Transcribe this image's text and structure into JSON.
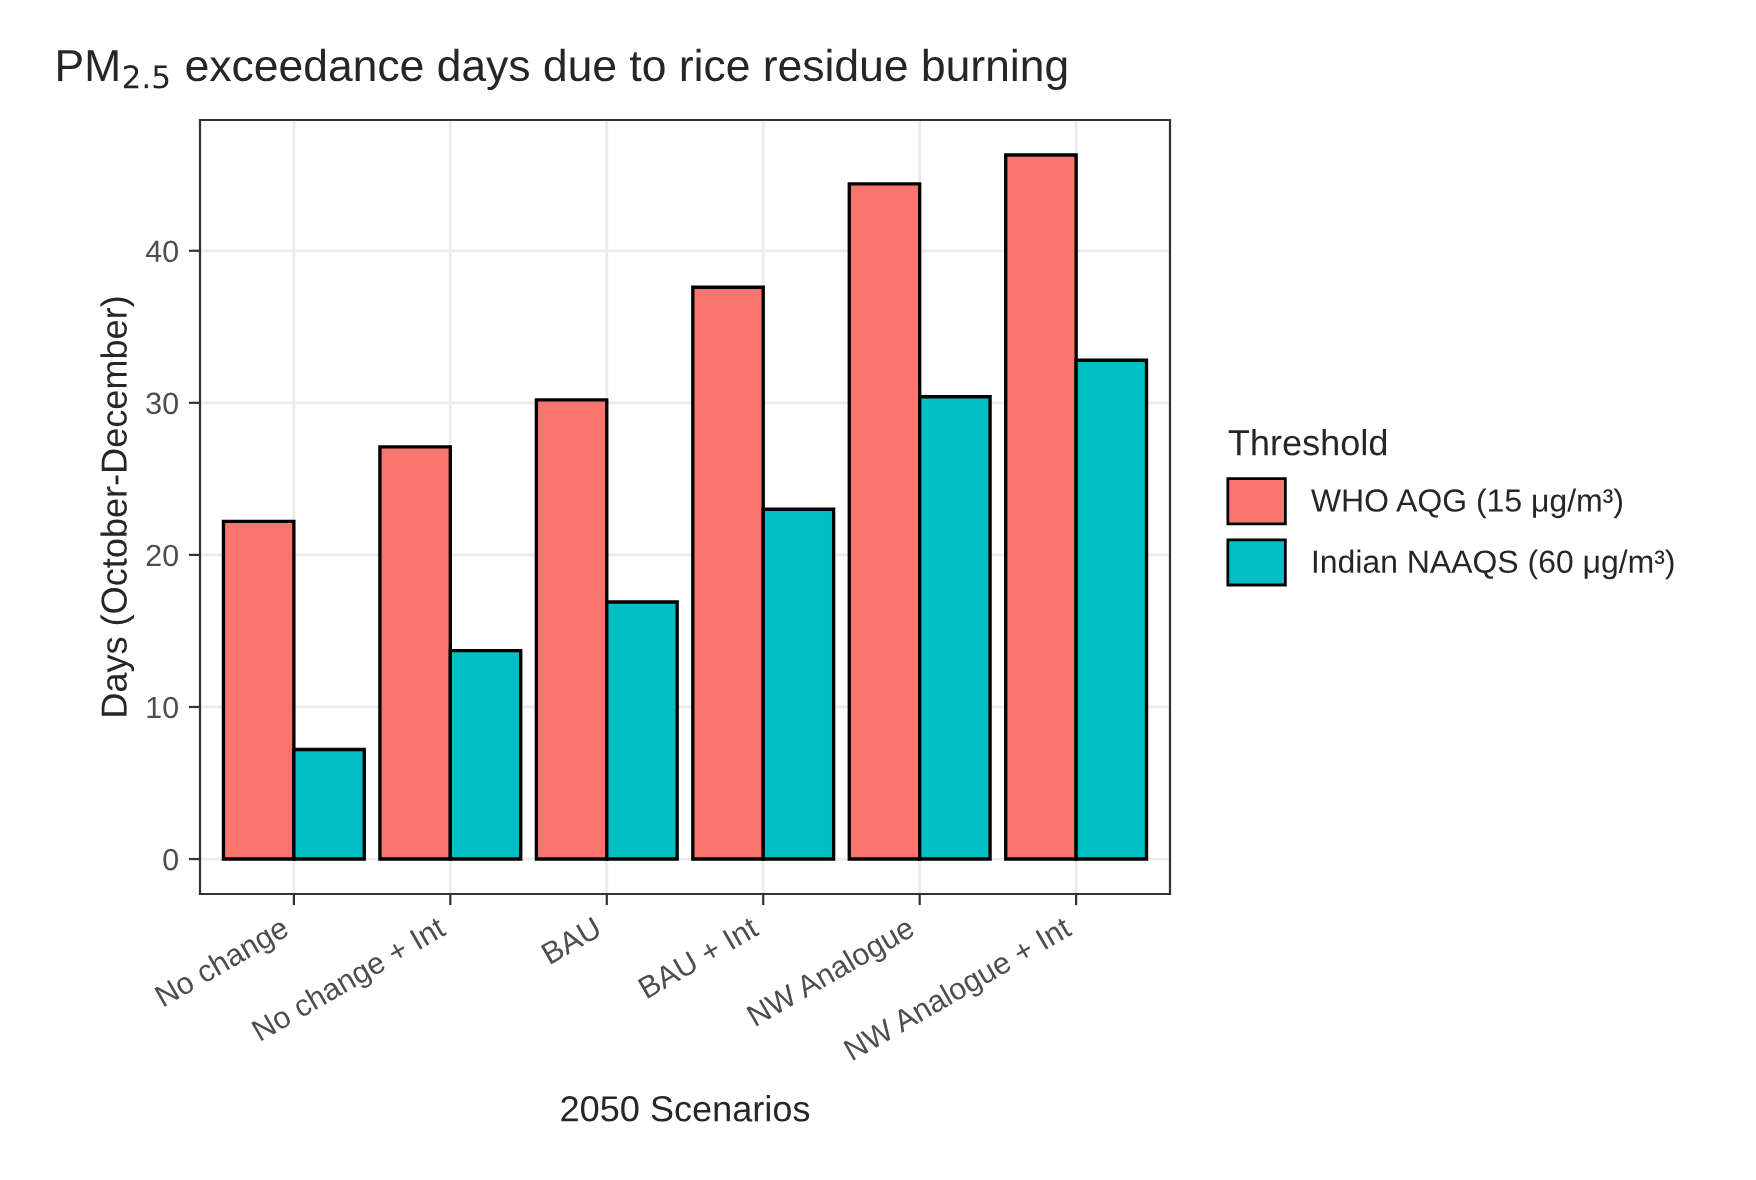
{
  "chart_data": {
    "type": "bar",
    "title": "PM$_{2.5}$ exceedance days due to rice residue burning",
    "xlabel": "2050 Scenarios",
    "ylabel": "Days (October-December)",
    "legend_title": "Threshold",
    "categories": [
      "No change",
      "No change + Int",
      "BAU",
      "BAU + Int",
      "NW Analogue",
      "NW Analogue + Int"
    ],
    "series": [
      {
        "name": "WHO AQG (15 μg/m³)",
        "color": "#f8766d",
        "values": [
          22.2,
          27.1,
          30.2,
          37.6,
          44.4,
          46.3
        ]
      },
      {
        "name": "Indian NAAQS (60 μg/m³)",
        "color": "#00bfc4",
        "values": [
          7.2,
          13.7,
          16.9,
          23.0,
          30.4,
          32.8
        ]
      }
    ],
    "ylim": [
      -2.3,
      48.6
    ],
    "yticks": [
      0,
      10,
      20,
      30,
      40
    ],
    "grid": true,
    "legend": "right"
  }
}
